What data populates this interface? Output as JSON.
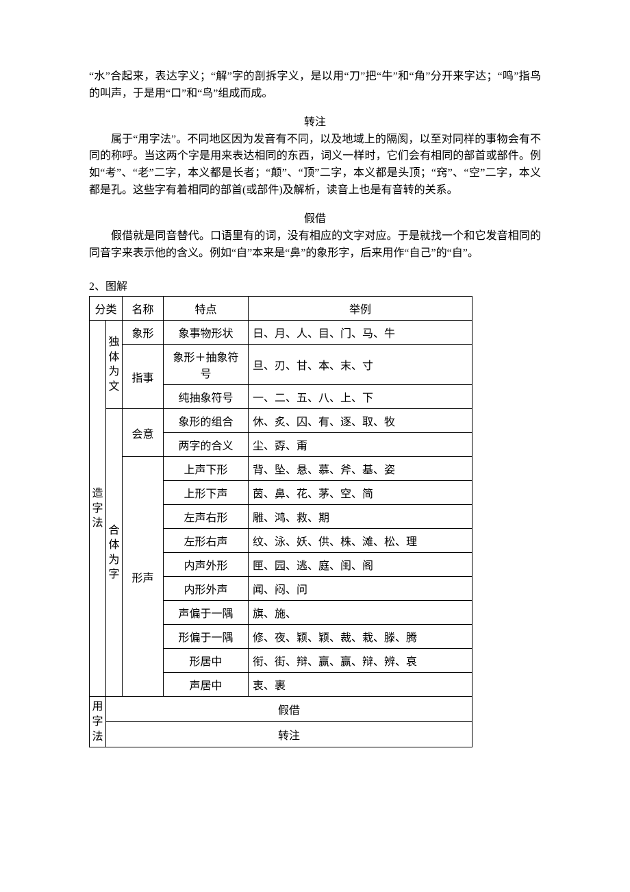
{
  "intro": {
    "p1": "“水”合起来，表达字义；“解”字的剖拆字义，是以用“刀”把“牛”和“角”分开来字达；“鸣”指鸟的叫声，于是用“口”和“鸟”组成而成。"
  },
  "zhuanzhu": {
    "title": "转注",
    "p1": "属于“用字法”。不同地区因为发音有不同，以及地域上的隔阂，以至对同样的事物会有不同的称呼。当这两个字是用来表达相同的东西，词义一样时，它们会有相同的部首或部件。例如“考”、“老”二字，本义都是长者；“颠”、“顶”二字，本义都是头顶；“窍”、“空”二字，本义都是孔。这些字有着相同的部首(或部件)及解析，读音上也是有音转的关系。"
  },
  "jiajie": {
    "title": "假借",
    "p1": "假借就是同音替代。口语里有的词，没有相应的文字对应。于是就找一个和它发音相同的同音字来表示他的含义。例如“自”本来是“鼻”的象形字，后来用作“自己”的“自”。"
  },
  "list_label": "2、图解",
  "table": {
    "headers": {
      "cat": "分类",
      "name": "名称",
      "feat": "特点",
      "ex": "举例"
    },
    "zaozifa": "造字法",
    "dutiweiwen": "独体为文",
    "hetiweizi": "合体为字",
    "yongzifa": "用字法",
    "rows": [
      {
        "name": "象形",
        "feat": "象事物形状",
        "ex": "日、月、人、目、门、马、牛"
      },
      {
        "name": "指事",
        "feat": "象形＋抽象符号",
        "ex": "旦、刃、甘、本、末、寸"
      },
      {
        "name": "",
        "feat": "纯抽象符号",
        "ex": "一、二、五、八、上、下"
      },
      {
        "name": "会意",
        "feat": "象形的组合",
        "ex": "休、炙、囚、有、逐、取、牧"
      },
      {
        "name": "",
        "feat": "两字的合义",
        "ex": "尘、孬、甭"
      },
      {
        "name": "形声",
        "feat": "上声下形",
        "ex": "背、坠、悬、慕、斧、基、姿"
      },
      {
        "name": "",
        "feat": "上形下声",
        "ex": "茵、鼻、花、茅、空、简"
      },
      {
        "name": "",
        "feat": "左声右形",
        "ex": "雕、鸿、救、期"
      },
      {
        "name": "",
        "feat": "左形右声",
        "ex": "纹、泳、妖、供、株、滩、松、理"
      },
      {
        "name": "",
        "feat": "内声外形",
        "ex": "匣、园、逃、庭、闺、阁"
      },
      {
        "name": "",
        "feat": "内形外声",
        "ex": "闻、闷、问"
      },
      {
        "name": "",
        "feat": "声偏于一隅",
        "ex": "旗、施、"
      },
      {
        "name": "",
        "feat": "形偏于一隅",
        "ex": "修、夜、颖、颖、裁、栽、滕、腾"
      },
      {
        "name": "",
        "feat": "形居中",
        "ex": "衔、街、辩、赢、赢、辩、辨、哀"
      },
      {
        "name": "",
        "feat": "声居中",
        "ex": "衷、裹"
      }
    ],
    "yong_rows": [
      "假借",
      "转注"
    ]
  }
}
